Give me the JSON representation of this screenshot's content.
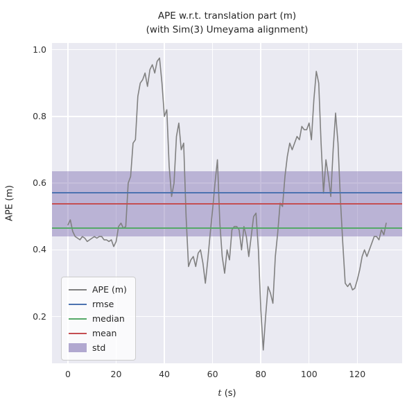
{
  "title": {
    "line1": "APE w.r.t. translation part (m)",
    "line2": "(with Sim(3) Umeyama alignment)"
  },
  "chart_data": {
    "type": "line",
    "title": "APE w.r.t. translation part (m) (with Sim(3) Umeyama alignment)",
    "xlabel": "t (s)",
    "xlabel_var": "t",
    "xlabel_unit": " (s)",
    "ylabel": "APE (m)",
    "xlim": [
      -6.6,
      138.6
    ],
    "ylim": [
      0.06,
      1.02
    ],
    "xticks": [
      0,
      20,
      40,
      60,
      80,
      100,
      120
    ],
    "yticks": [
      0.2,
      0.4,
      0.6,
      0.8,
      1.0
    ],
    "grid": true,
    "legend_position": "lower left",
    "colors": {
      "axes_background": "#eaeaf2",
      "grid": "#ffffff",
      "ape": "#808080",
      "rmse": "#4c72b0",
      "median": "#55a868",
      "mean": "#c44e52",
      "std_fill": "#8172b2",
      "std_alpha": 0.45
    },
    "series": [
      {
        "name": "APE (m)",
        "kind": "line",
        "color": "#808080",
        "x0": 0,
        "dx": 1,
        "y": [
          0.475,
          0.49,
          0.455,
          0.44,
          0.435,
          0.43,
          0.44,
          0.435,
          0.425,
          0.43,
          0.435,
          0.44,
          0.435,
          0.44,
          0.44,
          0.43,
          0.43,
          0.425,
          0.43,
          0.41,
          0.425,
          0.47,
          0.48,
          0.465,
          0.47,
          0.6,
          0.62,
          0.72,
          0.73,
          0.86,
          0.9,
          0.91,
          0.93,
          0.89,
          0.94,
          0.955,
          0.93,
          0.965,
          0.975,
          0.9,
          0.8,
          0.82,
          0.65,
          0.56,
          0.6,
          0.74,
          0.78,
          0.7,
          0.72,
          0.5,
          0.35,
          0.37,
          0.38,
          0.35,
          0.39,
          0.4,
          0.36,
          0.3,
          0.37,
          0.45,
          0.52,
          0.6,
          0.67,
          0.48,
          0.38,
          0.33,
          0.4,
          0.37,
          0.46,
          0.47,
          0.47,
          0.46,
          0.4,
          0.47,
          0.44,
          0.38,
          0.44,
          0.5,
          0.51,
          0.4,
          0.22,
          0.1,
          0.2,
          0.29,
          0.27,
          0.24,
          0.38,
          0.45,
          0.54,
          0.53,
          0.62,
          0.68,
          0.72,
          0.7,
          0.72,
          0.74,
          0.73,
          0.77,
          0.76,
          0.76,
          0.78,
          0.73,
          0.85,
          0.935,
          0.9,
          0.72,
          0.57,
          0.67,
          0.62,
          0.56,
          0.7,
          0.81,
          0.72,
          0.55,
          0.42,
          0.3,
          0.29,
          0.3,
          0.28,
          0.285,
          0.31,
          0.34,
          0.38,
          0.4,
          0.38,
          0.4,
          0.42,
          0.44,
          0.44,
          0.43,
          0.46,
          0.445,
          0.48
        ]
      },
      {
        "name": "rmse",
        "kind": "hline",
        "color": "#4c72b0",
        "value": 0.571
      },
      {
        "name": "median",
        "kind": "hline",
        "color": "#55a868",
        "value": 0.465
      },
      {
        "name": "mean",
        "kind": "hline",
        "color": "#c44e52",
        "value": 0.538
      },
      {
        "name": "std",
        "kind": "band",
        "color": "#8172b2",
        "low": 0.44,
        "high": 0.636
      }
    ]
  },
  "legend": {
    "entries": [
      "APE (m)",
      "rmse",
      "median",
      "mean",
      "std"
    ]
  }
}
